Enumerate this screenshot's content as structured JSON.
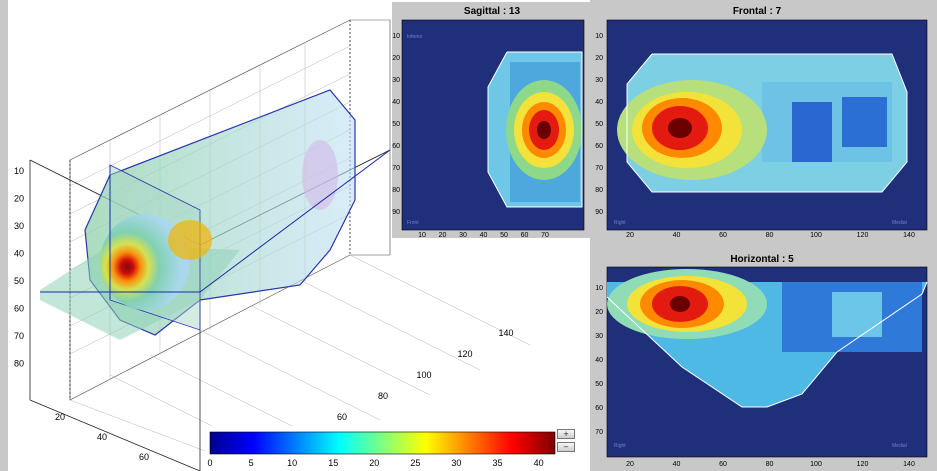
{
  "panels": {
    "sagittal": {
      "title": "Sagittal : 13",
      "corner_top": "Inferior",
      "corner_bottom": "Front",
      "x_ticks": [
        "10",
        "20",
        "30",
        "40",
        "50",
        "60",
        "70"
      ],
      "y_ticks": [
        "10",
        "20",
        "30",
        "40",
        "50",
        "60",
        "70",
        "80",
        "90"
      ]
    },
    "frontal": {
      "title": "Frontal : 7",
      "corner_bottom_left": "Right",
      "corner_bottom_right": "Medial",
      "x_ticks": [
        "20",
        "40",
        "60",
        "80",
        "100",
        "120",
        "140"
      ],
      "y_ticks": [
        "10",
        "20",
        "30",
        "40",
        "50",
        "60",
        "70",
        "80",
        "90"
      ]
    },
    "horizontal": {
      "title": "Horizontal : 5",
      "corner_bottom_left": "Right",
      "corner_bottom_right": "Medial",
      "x_ticks": [
        "20",
        "40",
        "60",
        "80",
        "100",
        "120",
        "140"
      ],
      "y_ticks": [
        "10",
        "20",
        "30",
        "40",
        "50",
        "60",
        "70"
      ]
    }
  },
  "view3d": {
    "z_ticks": [
      "10",
      "20",
      "30",
      "40",
      "50",
      "60",
      "70",
      "80"
    ],
    "x_ticks": [
      "20",
      "40",
      "60"
    ],
    "y_ticks": [
      "60",
      "80",
      "100",
      "120",
      "140"
    ]
  },
  "colorbar": {
    "ticks": [
      "0",
      "5",
      "10",
      "15",
      "20",
      "25",
      "30",
      "35",
      "40"
    ],
    "range": [
      0,
      40
    ],
    "up_label": "+",
    "down_label": "−"
  },
  "colors": {
    "background_field": "#1f2f7a",
    "figure_background": "#c8c8c8",
    "outline": "#ffffff"
  }
}
